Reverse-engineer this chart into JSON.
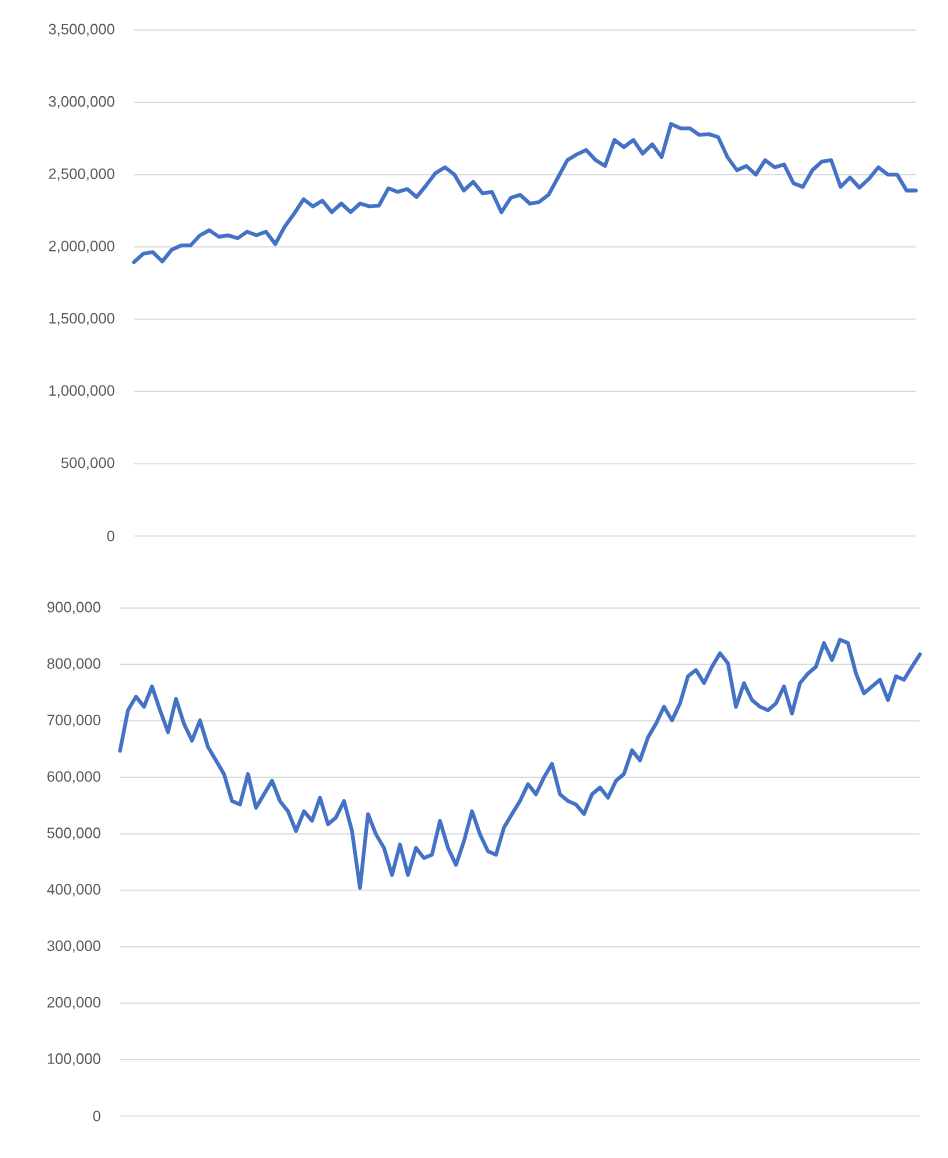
{
  "chart_data": [
    {
      "type": "line",
      "categories": [
        null,
        null,
        null,
        null,
        null,
        null,
        null,
        null,
        null,
        null,
        null,
        null,
        null,
        null,
        null,
        null,
        null,
        null,
        null,
        null,
        null,
        null,
        null,
        null,
        null,
        null,
        null,
        null,
        null,
        null,
        null,
        null,
        null,
        null,
        null,
        null,
        null,
        null,
        null,
        null,
        null,
        null,
        null,
        null,
        null,
        null,
        null,
        null,
        null,
        null,
        null,
        null,
        null,
        null,
        null,
        null,
        null,
        null,
        null,
        null,
        null,
        null,
        null,
        null,
        null,
        null,
        null,
        null,
        null,
        null,
        null,
        null,
        null,
        null,
        null,
        null,
        null,
        null,
        null,
        null,
        null,
        null,
        null,
        null
      ],
      "values": [
        1894000,
        1954000,
        1963000,
        1899000,
        1980000,
        2010000,
        2010000,
        2080000,
        2115000,
        2070000,
        2080000,
        2060000,
        2105000,
        2080000,
        2105000,
        2020000,
        2140000,
        2230000,
        2330000,
        2280000,
        2320000,
        2240000,
        2300000,
        2240000,
        2300000,
        2280000,
        2285000,
        2405000,
        2380000,
        2400000,
        2345000,
        2425000,
        2510000,
        2550000,
        2500000,
        2390000,
        2450000,
        2370000,
        2380000,
        2240000,
        2340000,
        2360000,
        2300000,
        2310000,
        2360000,
        2480000,
        2600000,
        2640000,
        2670000,
        2600000,
        2560000,
        2740000,
        2690000,
        2740000,
        2645000,
        2710000,
        2620000,
        2850000,
        2820000,
        2820000,
        2775000,
        2780000,
        2760000,
        2620000,
        2530000,
        2560000,
        2500000,
        2600000,
        2550000,
        2570000,
        2440000,
        2415000,
        2530000,
        2590000,
        2600000,
        2415000,
        2480000,
        2410000,
        2470000,
        2550000,
        2500000,
        2500000,
        2390000,
        2390000
      ],
      "color": "#4472c4",
      "ylim": [
        0,
        3500000
      ],
      "yticks": [
        {
          "value": 0,
          "label": "0"
        },
        {
          "value": 500000,
          "label": "500,000"
        },
        {
          "value": 1000000,
          "label": "1,000,000"
        },
        {
          "value": 1500000,
          "label": "1,500,000"
        },
        {
          "value": 2000000,
          "label": "2,000,000"
        },
        {
          "value": 2500000,
          "label": "2,500,000"
        },
        {
          "value": 3000000,
          "label": "3,000,000"
        },
        {
          "value": 3500000,
          "label": "3,500,000"
        }
      ],
      "grid": "y",
      "tick_labels": "y"
    },
    {
      "type": "line",
      "categories": [
        null,
        null,
        null,
        null,
        null,
        null,
        null,
        null,
        null,
        null,
        null,
        null,
        null,
        null,
        null,
        null,
        null,
        null,
        null,
        null,
        null,
        null,
        null,
        null,
        null,
        null,
        null,
        null,
        null,
        null,
        null,
        null,
        null,
        null,
        null,
        null,
        null,
        null,
        null,
        null,
        null,
        null,
        null,
        null,
        null,
        null,
        null,
        null,
        null,
        null,
        null,
        null,
        null,
        null,
        null,
        null,
        null,
        null,
        null,
        null,
        null,
        null,
        null,
        null,
        null,
        null,
        null,
        null,
        null,
        null,
        null,
        null,
        null,
        null,
        null,
        null,
        null,
        null,
        null,
        null,
        null,
        null,
        null,
        null,
        null,
        null,
        null,
        null,
        null,
        null,
        null,
        null,
        null,
        null,
        null,
        null,
        null,
        null,
        null,
        null,
        null
      ],
      "values": [
        647000,
        719000,
        743000,
        725000,
        761000,
        719000,
        680000,
        739000,
        695000,
        665000,
        701000,
        654000,
        630000,
        606000,
        558000,
        552000,
        606000,
        546000,
        570000,
        594000,
        558000,
        540000,
        505000,
        540000,
        523000,
        564000,
        517000,
        529000,
        558000,
        505000,
        404000,
        535000,
        499000,
        475000,
        427000,
        481000,
        427000,
        475000,
        457000,
        463000,
        523000,
        475000,
        445000,
        487000,
        540000,
        499000,
        469000,
        463000,
        511000,
        535000,
        558000,
        588000,
        570000,
        600000,
        624000,
        570000,
        558000,
        552000,
        535000,
        570000,
        582000,
        564000,
        594000,
        606000,
        648000,
        630000,
        671000,
        695000,
        725000,
        701000,
        731000,
        779000,
        790000,
        767000,
        796000,
        820000,
        802000,
        725000,
        767000,
        737000,
        725000,
        719000,
        731000,
        761000,
        713000,
        767000,
        784000,
        796000,
        838000,
        808000,
        844000,
        838000,
        784000,
        749000,
        761000,
        773000,
        737000,
        779000,
        773000,
        796000,
        818000
      ],
      "color": "#4472c4",
      "ylim": [
        0,
        900000
      ],
      "yticks": [
        {
          "value": 0,
          "label": "0"
        },
        {
          "value": 100000,
          "label": "100,000"
        },
        {
          "value": 200000,
          "label": "200,000"
        },
        {
          "value": 300000,
          "label": "300,000"
        },
        {
          "value": 400000,
          "label": "400,000"
        },
        {
          "value": 500000,
          "label": "500,000"
        },
        {
          "value": 600000,
          "label": "600,000"
        },
        {
          "value": 700000,
          "label": "700,000"
        },
        {
          "value": 800000,
          "label": "800,000"
        },
        {
          "value": 900000,
          "label": "900,000"
        }
      ],
      "grid": "y",
      "tick_labels": "y"
    }
  ]
}
